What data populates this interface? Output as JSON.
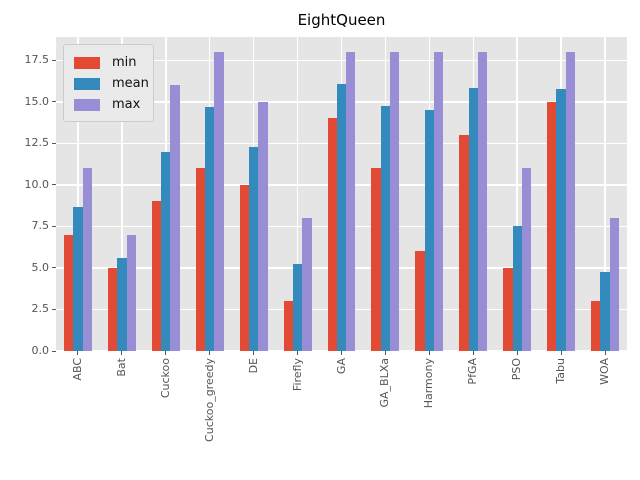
{
  "title": "EightQueen",
  "chart_data": {
    "type": "bar",
    "title": "EightQueen",
    "xlabel": "",
    "ylabel": "",
    "categories": [
      "ABC",
      "Bat",
      "Cuckoo",
      "Cuckoo_greedy",
      "DE",
      "Firefly",
      "GA",
      "GA_BLXa",
      "Harmony",
      "PfGA",
      "PSO",
      "Tabu",
      "WOA"
    ],
    "series": [
      {
        "name": "min",
        "color": "#E24A33",
        "values": [
          7,
          5,
          9,
          11,
          10,
          3,
          14,
          11,
          6,
          13,
          5,
          15,
          3
        ]
      },
      {
        "name": "mean",
        "color": "#348ABD",
        "values": [
          8.65,
          5.6,
          12.0,
          14.7,
          12.3,
          5.25,
          16.1,
          14.75,
          14.5,
          15.85,
          7.5,
          15.8,
          4.75
        ]
      },
      {
        "name": "max",
        "color": "#988ED5",
        "values": [
          11,
          7,
          16,
          18,
          15,
          8,
          18,
          18,
          18,
          18,
          11,
          18,
          8
        ]
      }
    ],
    "ylim": [
      0,
      18.9
    ],
    "yticks": [
      0.0,
      2.5,
      5.0,
      7.5,
      10.0,
      12.5,
      15.0,
      17.5
    ],
    "ytick_labels": [
      "0.0",
      "2.5",
      "5.0",
      "7.5",
      "10.0",
      "12.5",
      "15.0",
      "17.5"
    ],
    "grid": "on",
    "legend_position": "upper-left",
    "style": {
      "plot_bg": "#E5E5E5",
      "grid_color": "#FFFFFF",
      "tick_label_color": "#555555",
      "title_color": "#000000",
      "legend_bg": "#EAEAEA",
      "legend_border": "#CCCCCC"
    }
  }
}
